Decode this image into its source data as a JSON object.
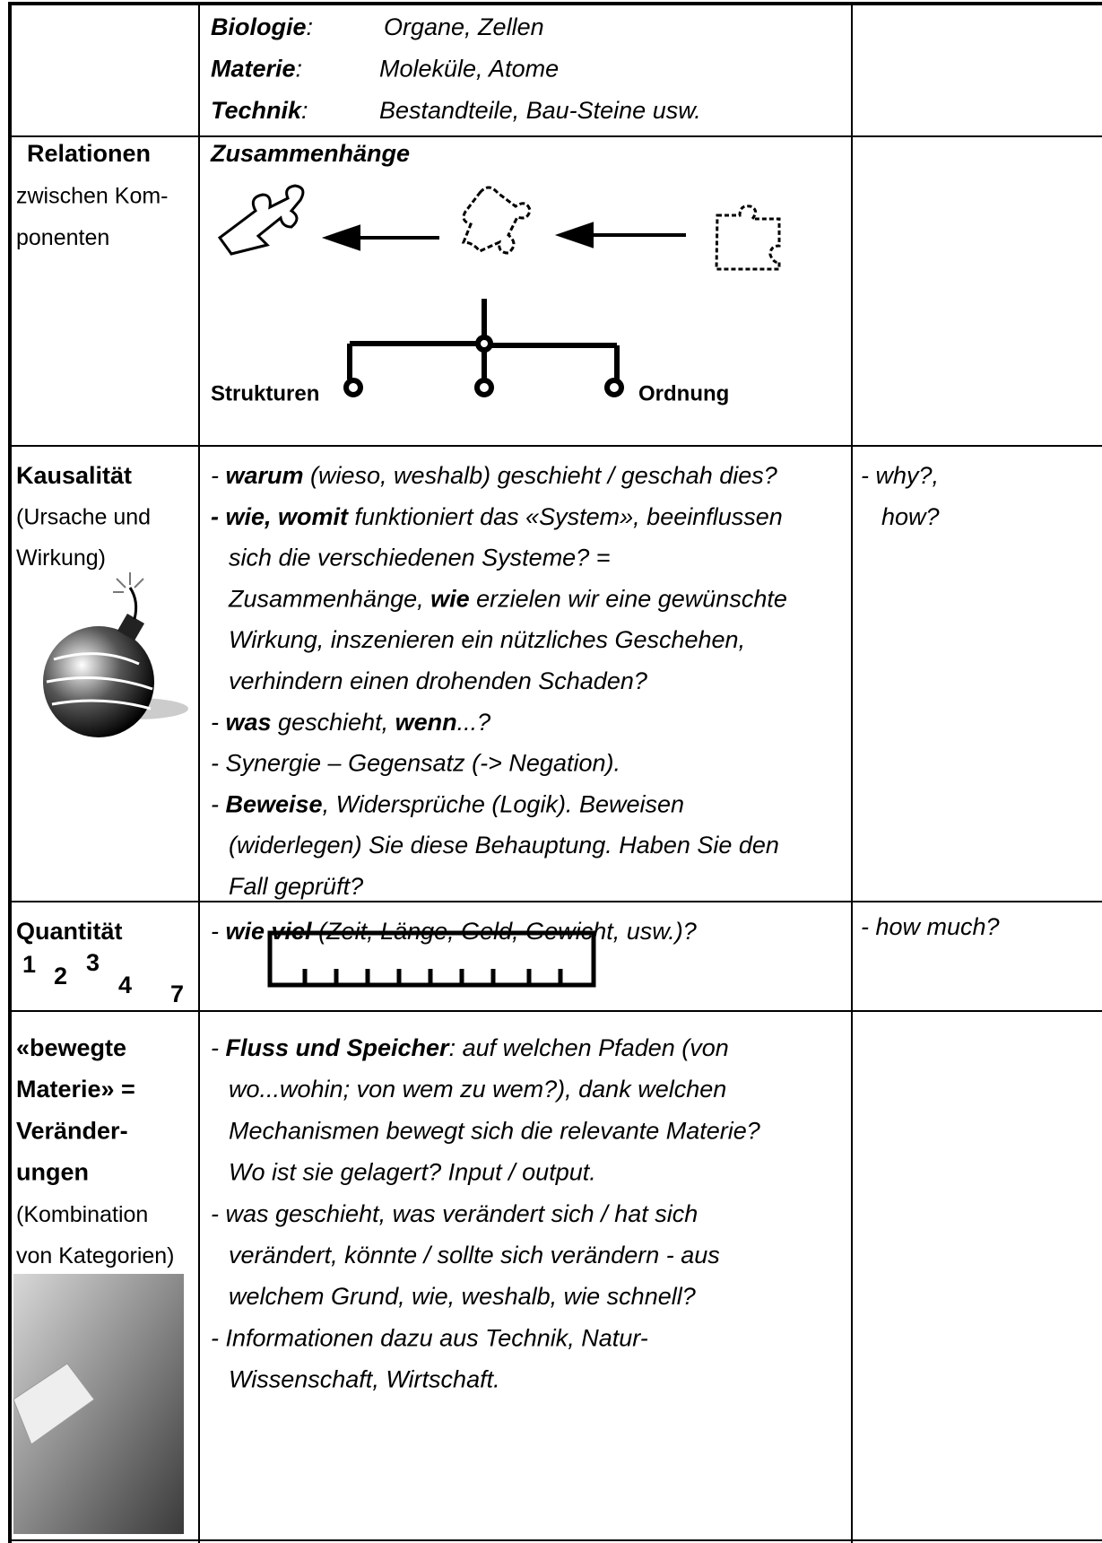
{
  "rows": [
    {
      "terms": [
        {
          "label": [
            {
              "text": "Biologie",
              "bold": true
            },
            {
              "text": ":"
            }
          ],
          "value": "Organe, Zellen"
        },
        {
          "label": [
            {
              "text": "Materie",
              "bold": true
            },
            {
              "text": ":"
            }
          ],
          "value": "Moleküle, Atome"
        },
        {
          "label": [
            {
              "text": "Technik",
              "bold": true
            },
            {
              "text": ":"
            }
          ],
          "value": "Bestandteile, Bau-Steine usw."
        }
      ]
    },
    {
      "label": [
        [
          {
            "text": "Relationen",
            "bold": true
          }
        ],
        [
          {
            "text": "zwischen Kom-"
          }
        ],
        [
          {
            "text": "ponenten"
          }
        ]
      ],
      "heading": [
        {
          "text": "Zusammenhänge",
          "bold": true
        }
      ],
      "diagram": {
        "left": "Strukturen",
        "right": "Ordnung"
      }
    },
    {
      "label": [
        [
          {
            "text": "Kausalität",
            "bold": true
          }
        ],
        [
          {
            "text": "(Ursache und"
          }
        ],
        [
          {
            "text": "Wirkung)"
          }
        ]
      ],
      "lines": [
        [
          {
            "text": "- "
          },
          {
            "text": "warum",
            "bold": true
          },
          {
            "text": " (wieso, weshalb) geschieht / geschah dies?"
          }
        ],
        [
          {
            "text": "- wie, womit",
            "bold": true
          },
          {
            "text": " funktioniert das «System», beeinflussen"
          }
        ],
        [
          {
            "text": "sich die verschiedenen Systeme? ="
          }
        ],
        [
          {
            "text": "Zusammenhänge, "
          },
          {
            "text": "wie",
            "bold": true
          },
          {
            "text": " erzielen wir eine gewünschte"
          }
        ],
        [
          {
            "text": "Wirkung, inszenieren ein nützliches Geschehen,"
          }
        ],
        [
          {
            "text": "verhindern einen drohenden Schaden?"
          }
        ],
        [
          {
            "text": "- "
          },
          {
            "text": "was",
            "bold": true
          },
          {
            "text": " geschieht, "
          },
          {
            "text": "wenn",
            "bold": true
          },
          {
            "text": "...?"
          }
        ],
        [
          {
            "text": "- Synergie – Gegensatz (-> Negation)."
          }
        ],
        [
          {
            "text": "- "
          },
          {
            "text": "Beweise",
            "bold": true
          },
          {
            "text": ", Widersprüche (Logik). Beweisen"
          }
        ],
        [
          {
            "text": "(widerlegen) Sie diese Behauptung. Haben Sie den"
          }
        ],
        [
          {
            "text": "Fall geprüft?"
          }
        ]
      ],
      "notes": [
        "- why?,",
        "how?"
      ]
    },
    {
      "label": [
        [
          {
            "text": "Quantität",
            "bold": true
          }
        ]
      ],
      "numbers": [
        "1",
        "2",
        "3",
        "4",
        "7"
      ],
      "lines": [
        [
          {
            "text": "- "
          },
          {
            "text": "wie viel",
            "bold": true
          },
          {
            "text": " (Zeit, Länge, Geld, Gewicht, usw.)?"
          }
        ]
      ],
      "notes": [
        "- how much?"
      ]
    },
    {
      "label": [
        [
          {
            "text": "«bewegte",
            "bold": true
          }
        ],
        [
          {
            "text": "Materie» =",
            "bold": true
          }
        ],
        [
          {
            "text": "Veränder-",
            "bold": true
          }
        ],
        [
          {
            "text": "ungen",
            "bold": true
          }
        ],
        [
          {
            "text": "(Kombination"
          }
        ],
        [
          {
            "text": "von Kategorien)"
          }
        ]
      ],
      "lines": [
        [
          {
            "text": "- "
          },
          {
            "text": "Fluss und Speicher",
            "bold": true
          },
          {
            "text": ": auf welchen Pfaden (von"
          }
        ],
        [
          {
            "text": "wo...wohin; von wem zu wem?), dank welchen"
          }
        ],
        [
          {
            "text": "Mechanismen bewegt sich die relevante Materie?"
          }
        ],
        [
          {
            "text": "Wo ist sie gelagert? Input / output."
          }
        ],
        [
          {
            "text": "- was geschieht, was verändert sich / hat sich"
          }
        ],
        [
          {
            "text": "verändert, könnte / sollte sich verändern - aus"
          }
        ],
        [
          {
            "text": "welchem Grund, wie, weshalb, wie schnell?"
          }
        ],
        [
          {
            "text": "- Informationen dazu aus Technik, Natur-"
          }
        ],
        [
          {
            "text": "Wissenschaft, Wirtschaft."
          }
        ]
      ]
    }
  ]
}
